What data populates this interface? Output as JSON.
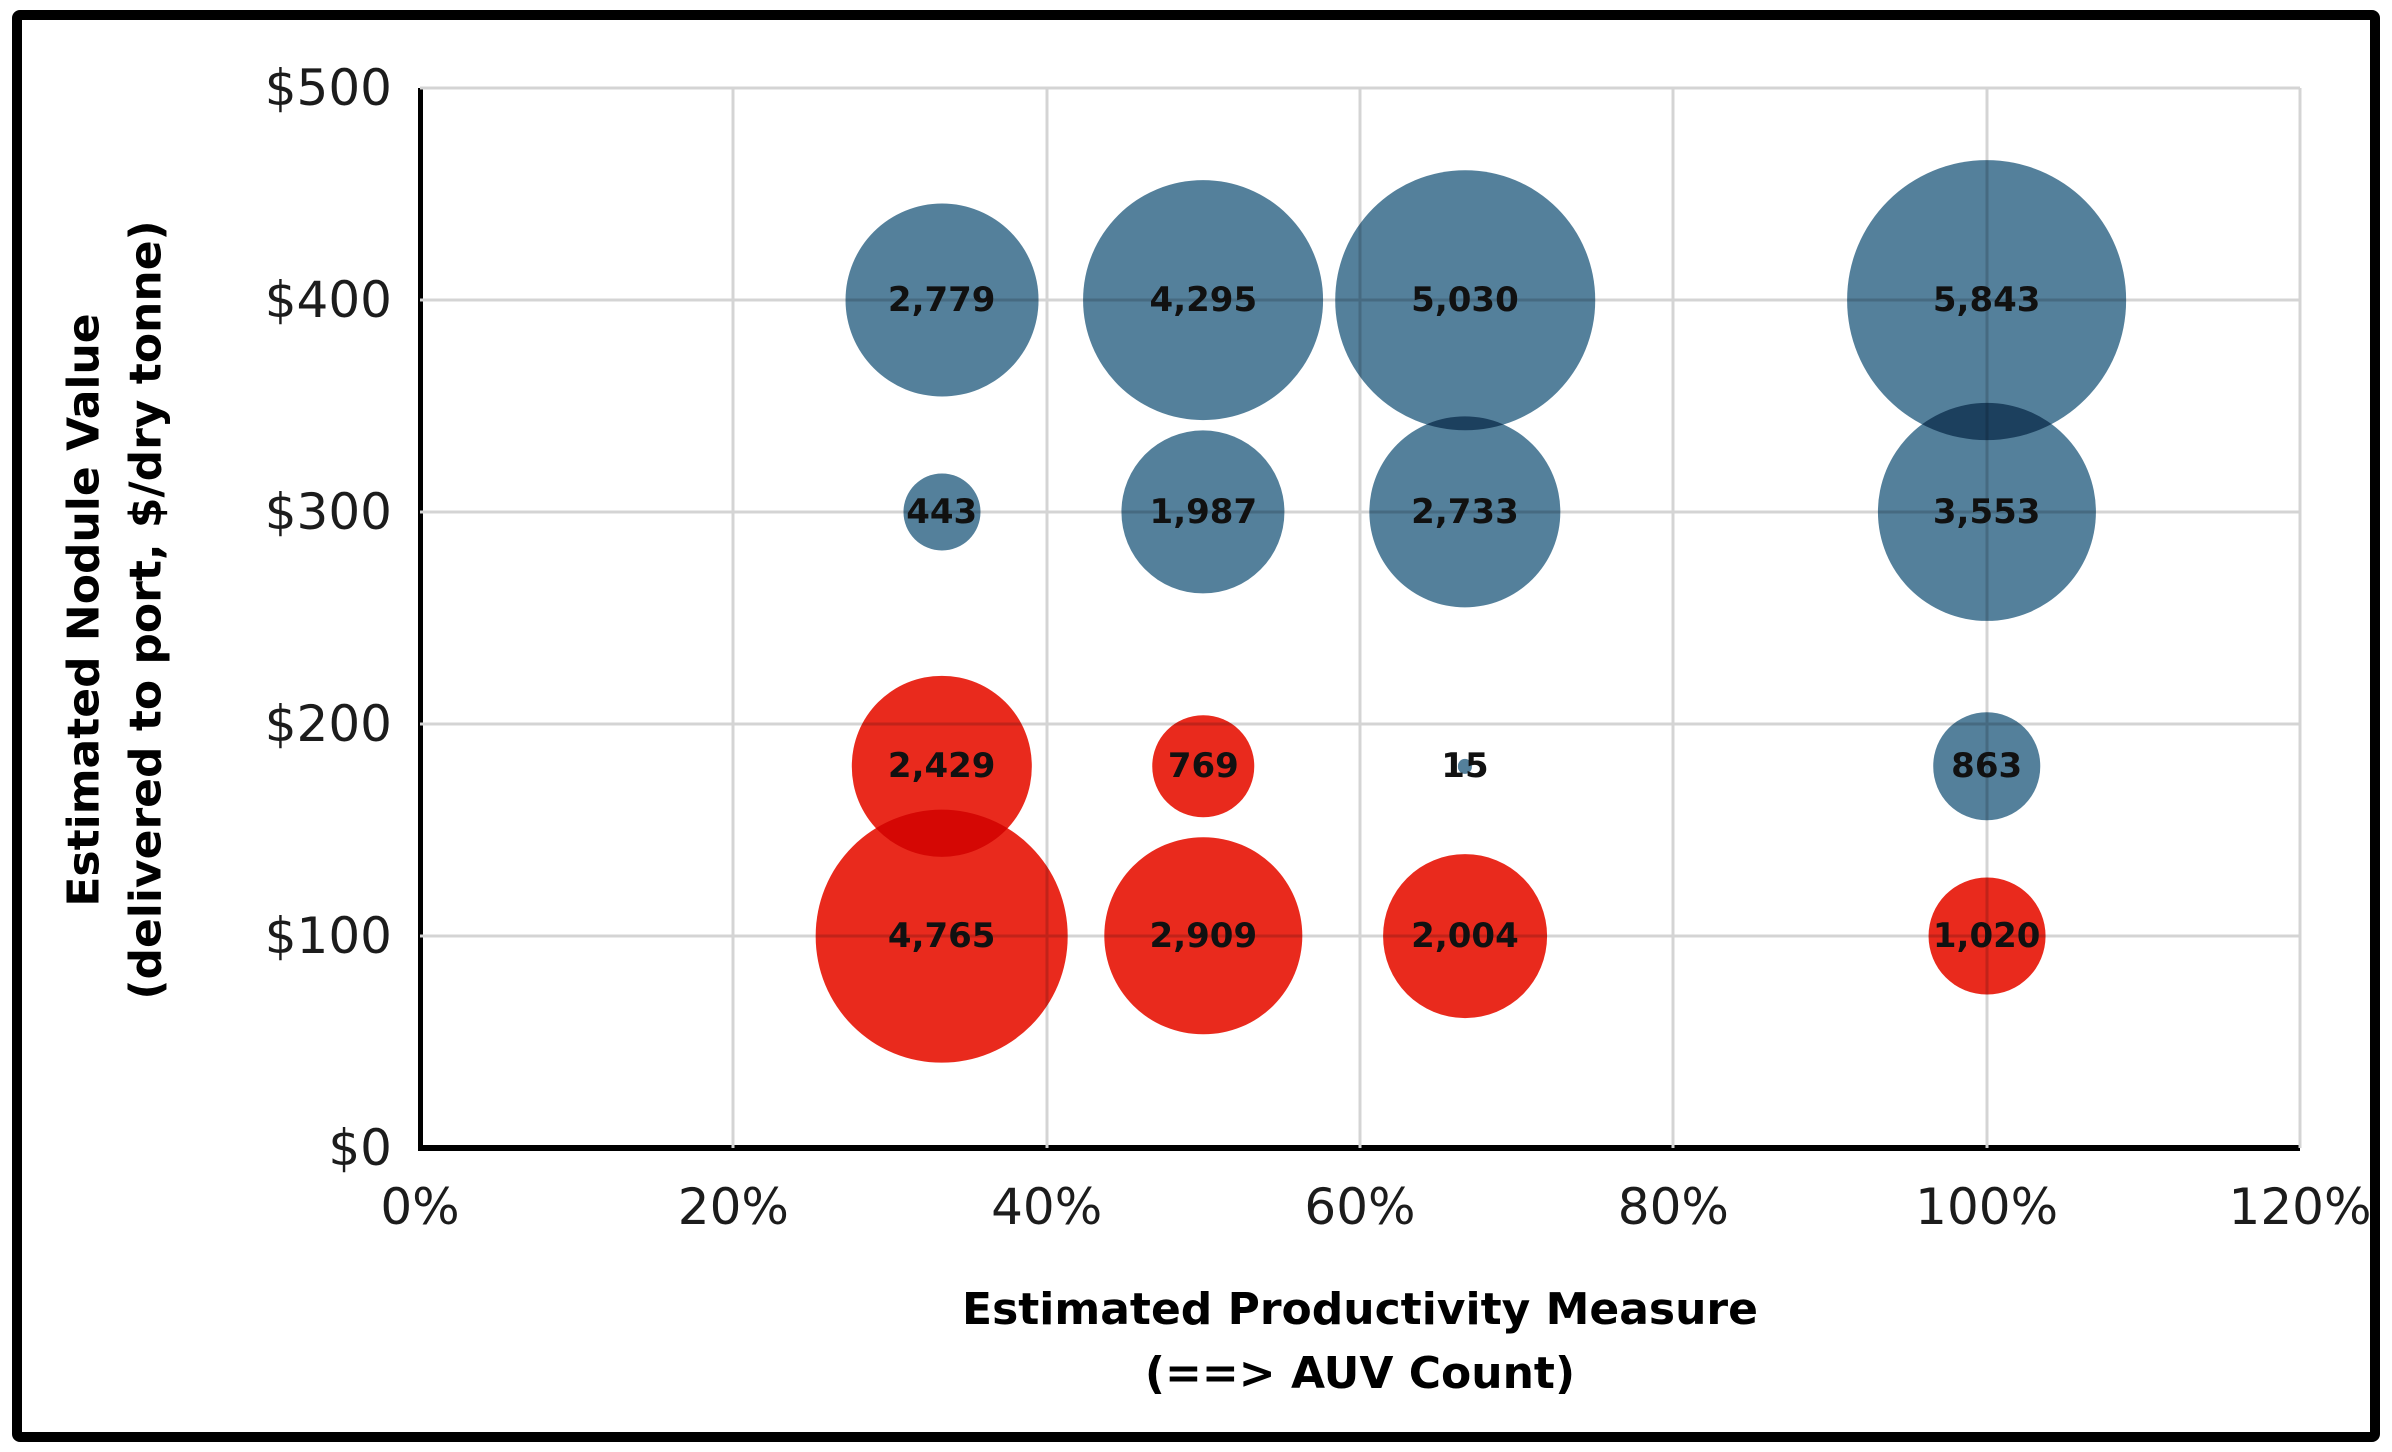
{
  "chart_data": {
    "type": "scatter",
    "subtype": "bubble",
    "title": "",
    "xlabel": "Estimated Productivity Measure (==> AUV Count)",
    "ylabel": "Estimated Nodule Value (delivered to port, $/dry tonne)",
    "xlim": [
      0,
      120
    ],
    "ylim": [
      0,
      500
    ],
    "grid": true,
    "legend": false,
    "bubble_size_rule": "area proportional to value",
    "x_axis": {
      "title_line1": "Estimated Productivity Measure",
      "title_line2": "(==> AUV Count)",
      "ticks": [
        {
          "value": 0,
          "label": "0%"
        },
        {
          "value": 20,
          "label": "20%"
        },
        {
          "value": 40,
          "label": "40%"
        },
        {
          "value": 60,
          "label": "60%"
        },
        {
          "value": 80,
          "label": "80%"
        },
        {
          "value": 100,
          "label": "100%"
        },
        {
          "value": 120,
          "label": "120%"
        }
      ]
    },
    "y_axis": {
      "title_line1": "Estimated Nodule Value",
      "title_line2": "(delivered to port, $/dry tonne)",
      "ticks": [
        {
          "value": 0,
          "label": "$0"
        },
        {
          "value": 100,
          "label": "$100"
        },
        {
          "value": 200,
          "label": "$200"
        },
        {
          "value": 300,
          "label": "$300"
        },
        {
          "value": 400,
          "label": "$400"
        },
        {
          "value": 500,
          "label": "$500"
        }
      ]
    },
    "colors": {
      "blue_series": "#54809B",
      "red_series": "#E92A1D",
      "gridline": "#D4D4D4",
      "axis": "#000000",
      "data_label": "#111111"
    },
    "series": [
      {
        "name": "blue",
        "color": "#54809B",
        "points": [
          {
            "x": 33.3,
            "y": 400,
            "size": 2779,
            "label": "2,779"
          },
          {
            "x": 50,
            "y": 400,
            "size": 4295,
            "label": "4,295"
          },
          {
            "x": 66.7,
            "y": 400,
            "size": 5030,
            "label": "5,030"
          },
          {
            "x": 100,
            "y": 400,
            "size": 5843,
            "label": "5,843"
          },
          {
            "x": 33.3,
            "y": 300,
            "size": 443,
            "label": "443"
          },
          {
            "x": 50,
            "y": 300,
            "size": 1987,
            "label": "1,987"
          },
          {
            "x": 66.7,
            "y": 300,
            "size": 2733,
            "label": "2,733"
          },
          {
            "x": 100,
            "y": 300,
            "size": 3553,
            "label": "3,553"
          },
          {
            "x": 66.7,
            "y": 180,
            "size": 15,
            "label": "15"
          },
          {
            "x": 100,
            "y": 180,
            "size": 863,
            "label": "863"
          }
        ]
      },
      {
        "name": "red",
        "color": "#E92A1D",
        "points": [
          {
            "x": 33.3,
            "y": 180,
            "size": 2429,
            "label": "2,429"
          },
          {
            "x": 50,
            "y": 180,
            "size": 769,
            "label": "769"
          },
          {
            "x": 33.3,
            "y": 100,
            "size": 4765,
            "label": "4,765"
          },
          {
            "x": 50,
            "y": 100,
            "size": 2909,
            "label": "2,909"
          },
          {
            "x": 66.7,
            "y": 100,
            "size": 2004,
            "label": "2,004"
          },
          {
            "x": 100,
            "y": 100,
            "size": 1020,
            "label": "1,020"
          }
        ]
      }
    ]
  }
}
